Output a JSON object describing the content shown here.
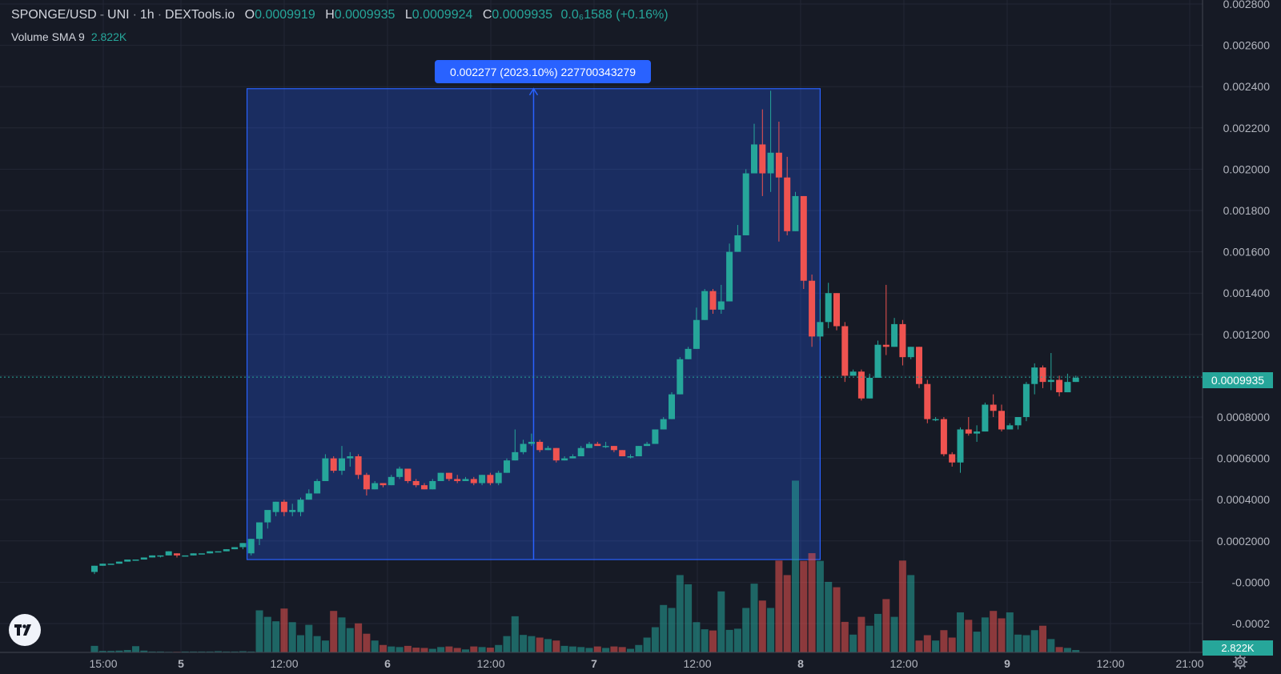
{
  "legend": {
    "symbol": "SPONGE/USD",
    "exchange": "UNI",
    "interval": "1h",
    "source": "DEXTools.io",
    "ohlc": [
      {
        "k": "O",
        "v": "0.0009919"
      },
      {
        "k": "H",
        "v": "0.0009935"
      },
      {
        "k": "L",
        "v": "0.0009924"
      },
      {
        "k": "C",
        "v": "0.0009935"
      }
    ],
    "change": "0.0₆1588 (+0.16%)"
  },
  "indicator": {
    "name": "Volume SMA 9",
    "value": "2.822K"
  },
  "measure_label": "0.002277 (2023.10%) 227700343279",
  "price_tag": "0.0009935",
  "volume_tag": "2.822K",
  "colors": {
    "up": "#26a69a",
    "down": "#ef5350",
    "measure": "#2962ff",
    "bg": "#161a25"
  },
  "icons": [
    "tradingview-logo-icon",
    "gear-icon"
  ],
  "chart_data": {
    "type": "candlestick",
    "interval": "1h",
    "y_ticks": [
      "0.002800",
      "0.002600",
      "0.002400",
      "0.002200",
      "0.002000",
      "0.001800",
      "0.001600",
      "0.001400",
      "0.001200",
      "0.001000",
      "0.0008000",
      "0.0006000",
      "0.0004000",
      "0.0002000",
      "-0.0000",
      "-0.0002"
    ],
    "x_ticks": [
      "15:00",
      "5",
      "12:00",
      "6",
      "12:00",
      "7",
      "12:00",
      "8",
      "12:00",
      "9",
      "12:00",
      "21:00"
    ],
    "ylim": [
      -0.0003,
      0.0029
    ],
    "last_price": 0.0009935,
    "measure": {
      "from": 0.00011,
      "to": 0.00239,
      "change": "0.002277 (2023.10%)"
    },
    "candles": [
      [
        5e-05,
        8e-05,
        4e-05,
        8e-05
      ],
      [
        8e-05,
        9e-05,
        8e-05,
        9e-05
      ],
      [
        9e-05,
        9e-05,
        9e-05,
        9e-05
      ],
      [
        9e-05,
        0.0001,
        9e-05,
        0.0001
      ],
      [
        0.0001,
        0.00011,
        0.0001,
        0.00011
      ],
      [
        0.00011,
        0.00011,
        0.00011,
        0.00011
      ],
      [
        0.00011,
        0.00012,
        0.00011,
        0.00012
      ],
      [
        0.00012,
        0.00013,
        0.00012,
        0.00013
      ],
      [
        0.00013,
        0.00013,
        0.00012,
        0.00013
      ],
      [
        0.00013,
        0.00015,
        0.00013,
        0.00015
      ],
      [
        0.00014,
        0.00013,
        0.00012,
        0.00014
      ],
      [
        0.00013,
        0.00013,
        0.00013,
        0.00013
      ],
      [
        0.00013,
        0.00014,
        0.00013,
        0.00014
      ],
      [
        0.00014,
        0.00014,
        0.00014,
        0.00014
      ],
      [
        0.00014,
        0.00015,
        0.00014,
        0.00015
      ],
      [
        0.00015,
        0.00015,
        0.00015,
        0.00015
      ],
      [
        0.00015,
        0.00016,
        0.00015,
        0.00016
      ],
      [
        0.00016,
        0.00017,
        0.00016,
        0.00017
      ],
      [
        0.00017,
        0.00019,
        0.00016,
        0.00019
      ],
      [
        0.00014,
        0.00021,
        0.00013,
        0.00021
      ],
      [
        0.00021,
        0.00029,
        0.00018,
        0.00029
      ],
      [
        0.00029,
        0.00035,
        0.00026,
        0.00034
      ],
      [
        0.00034,
        0.00039,
        0.00032,
        0.00039
      ],
      [
        0.00039,
        0.00034,
        0.00032,
        0.0004
      ],
      [
        0.00034,
        0.00035,
        0.00032,
        0.00038
      ],
      [
        0.00034,
        0.0004,
        0.00032,
        0.00041
      ],
      [
        0.0004,
        0.00043,
        0.0004,
        0.00045
      ],
      [
        0.00043,
        0.00049,
        0.00043,
        0.0005
      ],
      [
        0.00049,
        0.0006,
        0.00049,
        0.00062
      ],
      [
        0.0006,
        0.00054,
        0.00053,
        0.00061
      ],
      [
        0.00054,
        0.0006,
        0.00052,
        0.00066
      ],
      [
        0.0006,
        0.00061,
        0.00056,
        0.00063
      ],
      [
        0.00061,
        0.00052,
        0.0005,
        0.00062
      ],
      [
        0.00052,
        0.00045,
        0.00042,
        0.00053
      ],
      [
        0.00045,
        0.00048,
        0.00045,
        0.00049
      ],
      [
        0.00048,
        0.00047,
        0.00046,
        0.00048
      ],
      [
        0.00047,
        0.00051,
        0.00047,
        0.00052
      ],
      [
        0.00051,
        0.00055,
        0.0005,
        0.00056
      ],
      [
        0.00055,
        0.00049,
        0.00048,
        0.00055
      ],
      [
        0.00049,
        0.00047,
        0.00046,
        0.0005
      ],
      [
        0.00047,
        0.00045,
        0.00045,
        0.00048
      ],
      [
        0.00045,
        0.00049,
        0.00045,
        0.0005
      ],
      [
        0.00049,
        0.00053,
        0.00049,
        0.00053
      ],
      [
        0.00053,
        0.0005,
        0.00049,
        0.00053
      ],
      [
        0.0005,
        0.00049,
        0.00048,
        0.00052
      ],
      [
        0.00049,
        0.0005,
        0.00049,
        0.00051
      ],
      [
        0.0005,
        0.00048,
        0.00047,
        0.00051
      ],
      [
        0.00048,
        0.00052,
        0.00047,
        0.00052
      ],
      [
        0.00052,
        0.00048,
        0.00047,
        0.00053
      ],
      [
        0.00048,
        0.00053,
        0.00047,
        0.00054
      ],
      [
        0.00053,
        0.00059,
        0.00053,
        0.0006
      ],
      [
        0.00059,
        0.00063,
        0.00059,
        0.00074
      ],
      [
        0.00063,
        0.00067,
        0.00062,
        0.00069
      ],
      [
        0.00067,
        0.00068,
        0.00066,
        0.00072
      ],
      [
        0.00068,
        0.00064,
        0.00063,
        0.00069
      ],
      [
        0.00064,
        0.00065,
        0.00064,
        0.00066
      ],
      [
        0.00065,
        0.00059,
        0.00058,
        0.00065
      ],
      [
        0.00059,
        0.0006,
        0.00059,
        0.00061
      ],
      [
        0.0006,
        0.00061,
        0.0006,
        0.00062
      ],
      [
        0.00061,
        0.00065,
        0.00061,
        0.00066
      ],
      [
        0.00065,
        0.00067,
        0.00065,
        0.00068
      ],
      [
        0.00067,
        0.00066,
        0.00066,
        0.00068
      ],
      [
        0.00066,
        0.00066,
        0.00065,
        0.00068
      ],
      [
        0.00066,
        0.00064,
        0.00063,
        0.00066
      ],
      [
        0.00064,
        0.00061,
        0.00061,
        0.00064
      ],
      [
        0.00061,
        0.00061,
        0.0006,
        0.00062
      ],
      [
        0.00061,
        0.00066,
        0.00061,
        0.00066
      ],
      [
        0.00066,
        0.00067,
        0.00066,
        0.00068
      ],
      [
        0.00067,
        0.00074,
        0.00067,
        0.00074
      ],
      [
        0.00074,
        0.00079,
        0.00074,
        0.0008
      ],
      [
        0.00079,
        0.00091,
        0.00079,
        0.00092
      ],
      [
        0.00091,
        0.00108,
        0.00091,
        0.00109
      ],
      [
        0.00108,
        0.00113,
        0.00108,
        0.00114
      ],
      [
        0.00113,
        0.00127,
        0.00113,
        0.00133
      ],
      [
        0.00127,
        0.00141,
        0.00127,
        0.00142
      ],
      [
        0.00141,
        0.00132,
        0.0013,
        0.00142
      ],
      [
        0.00132,
        0.00136,
        0.0013,
        0.00144
      ],
      [
        0.00136,
        0.0016,
        0.00136,
        0.00164
      ],
      [
        0.0016,
        0.00168,
        0.0016,
        0.00173
      ],
      [
        0.00168,
        0.00198,
        0.00168,
        0.002
      ],
      [
        0.00198,
        0.00212,
        0.00198,
        0.00222
      ],
      [
        0.00212,
        0.00198,
        0.00187,
        0.00229
      ],
      [
        0.00198,
        0.00208,
        0.00189,
        0.00238
      ],
      [
        0.00208,
        0.00196,
        0.00165,
        0.00223
      ],
      [
        0.00196,
        0.0017,
        0.00168,
        0.00206
      ],
      [
        0.0017,
        0.00187,
        0.0017,
        0.00189
      ],
      [
        0.00187,
        0.00146,
        0.00142,
        0.00187
      ],
      [
        0.00146,
        0.00119,
        0.00114,
        0.00149
      ],
      [
        0.00119,
        0.00126,
        0.00117,
        0.00137
      ],
      [
        0.00126,
        0.0014,
        0.00123,
        0.00145
      ],
      [
        0.0014,
        0.00124,
        0.00122,
        0.0014
      ],
      [
        0.00124,
        0.001,
        0.00097,
        0.00126
      ],
      [
        0.001,
        0.00102,
        0.001,
        0.00103
      ],
      [
        0.00102,
        0.00089,
        0.00088,
        0.00103
      ],
      [
        0.00089,
        0.00099,
        0.00089,
        0.00101
      ],
      [
        0.00099,
        0.00115,
        0.00099,
        0.00117
      ],
      [
        0.00115,
        0.00114,
        0.0011,
        0.00144
      ],
      [
        0.00114,
        0.00125,
        0.00114,
        0.00128
      ],
      [
        0.00125,
        0.00109,
        0.00105,
        0.00127
      ],
      [
        0.00109,
        0.00114,
        0.00108,
        0.00114
      ],
      [
        0.00114,
        0.00096,
        0.00094,
        0.00114
      ],
      [
        0.00096,
        0.00079,
        0.00077,
        0.00098
      ],
      [
        0.00079,
        0.00079,
        0.00078,
        0.0008
      ],
      [
        0.00079,
        0.00062,
        0.00061,
        0.0008
      ],
      [
        0.00062,
        0.00058,
        0.00056,
        0.00063
      ],
      [
        0.00058,
        0.00074,
        0.00053,
        0.00075
      ],
      [
        0.00074,
        0.00072,
        0.00071,
        0.0008
      ],
      [
        0.00072,
        0.00073,
        0.00068,
        0.00076
      ],
      [
        0.00073,
        0.00086,
        0.00073,
        0.00087
      ],
      [
        0.00086,
        0.00083,
        0.0008,
        0.00091
      ],
      [
        0.00083,
        0.00074,
        0.00073,
        0.00086
      ],
      [
        0.00074,
        0.00076,
        0.00074,
        0.00077
      ],
      [
        0.00076,
        0.0008,
        0.00074,
        0.0008
      ],
      [
        0.0008,
        0.00096,
        0.00078,
        0.00097
      ],
      [
        0.00096,
        0.00104,
        0.00091,
        0.00106
      ],
      [
        0.00104,
        0.00097,
        0.00094,
        0.00105
      ],
      [
        0.00097,
        0.00098,
        0.00093,
        0.00111
      ],
      [
        0.00098,
        0.00092,
        0.0009,
        0.001
      ],
      [
        0.00092,
        0.00097,
        0.00092,
        0.00101
      ],
      [
        0.00097,
        0.00099,
        0.00097,
        0.001
      ]
    ],
    "volumes": [
      0.22,
      0.05,
      0.05,
      0.06,
      0.08,
      0.21,
      0.06,
      0.03,
      0.03,
      0.02,
      0.02,
      0.03,
      0.03,
      0.03,
      0.03,
      0.04,
      0.03,
      0.03,
      0.04,
      0.03,
      1.42,
      1.2,
      1.05,
      1.48,
      1.02,
      0.58,
      0.93,
      0.55,
      0.4,
      1.4,
      1.18,
      0.82,
      0.98,
      0.63,
      0.4,
      0.25,
      0.2,
      0.18,
      0.22,
      0.16,
      0.15,
      0.12,
      0.18,
      0.2,
      0.15,
      0.1,
      0.2,
      0.18,
      0.16,
      0.25,
      0.55,
      1.22,
      0.59,
      0.55,
      0.5,
      0.45,
      0.4,
      0.22,
      0.2,
      0.18,
      0.15,
      0.2,
      0.15,
      0.2,
      0.18,
      0.12,
      0.25,
      0.5,
      0.85,
      1.6,
      1.5,
      2.61,
      2.3,
      1.02,
      0.78,
      0.74,
      2.06,
      0.76,
      0.8,
      1.5,
      2.32,
      1.75,
      1.5,
      3.1,
      2.61,
      5.8,
      3.09,
      3.35,
      3.09,
      2.38,
      2.2,
      1.03,
      0.6,
      1.2,
      0.9,
      1.3,
      1.8,
      1.2,
      3.1,
      2.61,
      0.4,
      0.58,
      0.4,
      0.75,
      0.5,
      1.35,
      1.1,
      0.7,
      1.18,
      1.4,
      1.15,
      1.35,
      0.6,
      0.58,
      0.75,
      0.9,
      0.45,
      0.18,
      0.15,
      0.08
    ]
  }
}
